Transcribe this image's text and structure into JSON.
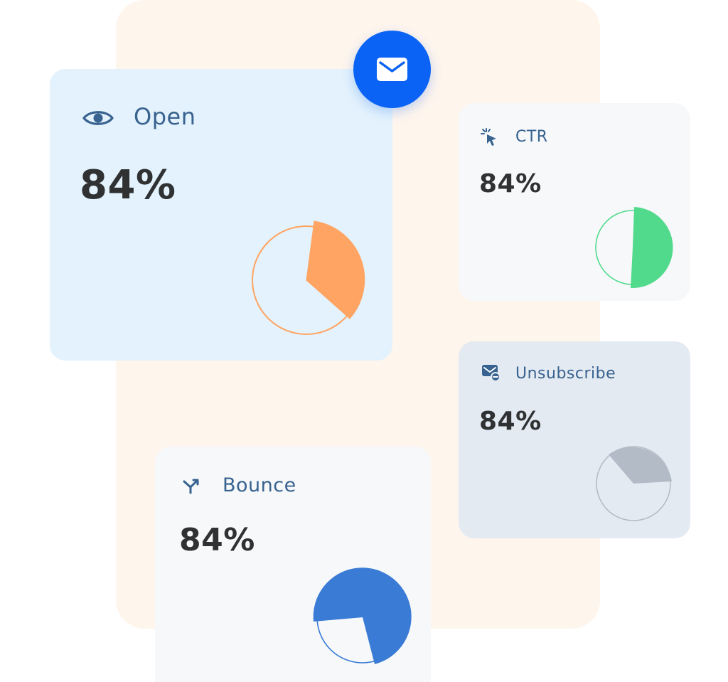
{
  "colors": {
    "backdrop": "#fef5ed",
    "open_card": "#e3f2fc",
    "neutral_card": "#f6f8fa",
    "unsubscribe_card": "#e3eaf2",
    "accent_blue": "#0a63f4",
    "label_text": "#38628f",
    "value_text": "#2f3133",
    "open_slice": "#ffa462",
    "ctr_slice": "#52da8c",
    "unsubscribe_slice": "#b3bcc6",
    "bounce_slice": "#3a7bd5"
  },
  "badge": {
    "icon": "mail-icon"
  },
  "metrics": {
    "open": {
      "label": "Open",
      "value": "84%",
      "icon": "eye-icon"
    },
    "ctr": {
      "label": "CTR",
      "value": "84%",
      "icon": "cursor-click-icon"
    },
    "unsubscribe": {
      "label": "Unsubscribe",
      "value": "84%",
      "icon": "mail-minus-icon"
    },
    "bounce": {
      "label": "Bounce",
      "value": "84%",
      "icon": "bounce-arrows-icon"
    }
  }
}
